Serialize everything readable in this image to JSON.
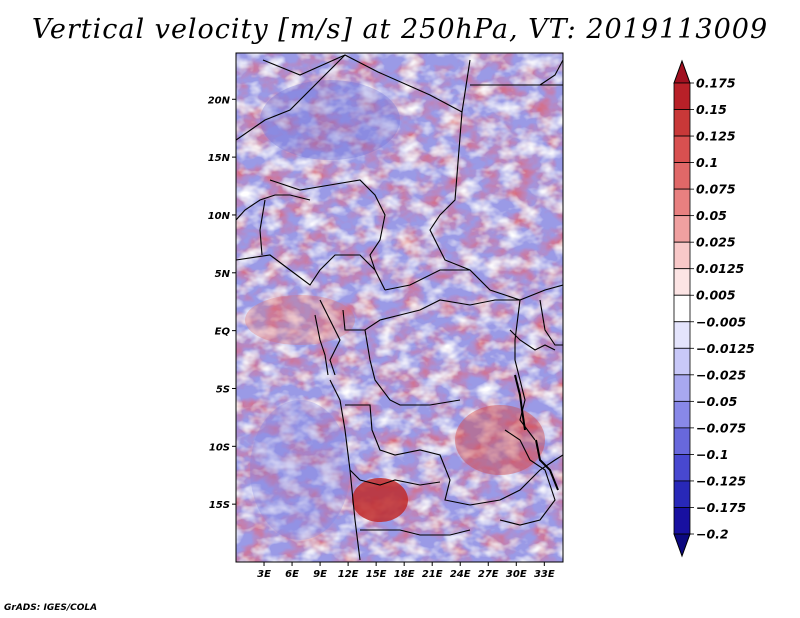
{
  "title": "Vertical velocity [m/s] at 250hPa, VT: 2019113009",
  "credit": "GrADS: IGES/COLA",
  "map": {
    "variable": "Vertical velocity",
    "units": "m/s",
    "level": "250hPa",
    "valid_time": "2019113009",
    "lon_range": [
      0,
      35
    ],
    "lat_range": [
      -20,
      24
    ],
    "lat_ticks": [
      {
        "value": 20,
        "label": "20N"
      },
      {
        "value": 15,
        "label": "15N"
      },
      {
        "value": 10,
        "label": "10N"
      },
      {
        "value": 5,
        "label": "5N"
      },
      {
        "value": 0,
        "label": "EQ"
      },
      {
        "value": -5,
        "label": "5S"
      },
      {
        "value": -10,
        "label": "10S"
      },
      {
        "value": -15,
        "label": "15S"
      }
    ],
    "lon_ticks": [
      {
        "value": 3,
        "label": "3E"
      },
      {
        "value": 6,
        "label": "6E"
      },
      {
        "value": 9,
        "label": "9E"
      },
      {
        "value": 12,
        "label": "12E"
      },
      {
        "value": 15,
        "label": "15E"
      },
      {
        "value": 18,
        "label": "18E"
      },
      {
        "value": 21,
        "label": "21E"
      },
      {
        "value": 24,
        "label": "24E"
      },
      {
        "value": 27,
        "label": "27E"
      },
      {
        "value": 30,
        "label": "30E"
      },
      {
        "value": 33,
        "label": "33E"
      }
    ]
  },
  "colorbar": {
    "labels": [
      "0.175",
      "0.15",
      "0.125",
      "0.1",
      "0.075",
      "0.05",
      "0.025",
      "0.0125",
      "0.005",
      "−0.005",
      "−0.0125",
      "−0.025",
      "−0.05",
      "−0.075",
      "−0.1",
      "−0.125",
      "−0.175",
      "−0.2"
    ],
    "colors": [
      "#a01020",
      "#b82028",
      "#c83838",
      "#d85050",
      "#e06868",
      "#e88080",
      "#f0a0a0",
      "#f8c8c8",
      "#fce4e4",
      "#ffffff",
      "#e4e4fc",
      "#c8c8f8",
      "#a8a8f0",
      "#8888e8",
      "#6868dc",
      "#4848d0",
      "#2828b8",
      "#1810a0",
      "#0c0880"
    ]
  }
}
